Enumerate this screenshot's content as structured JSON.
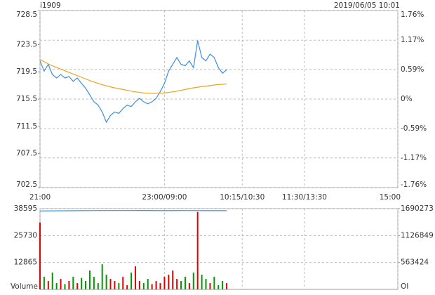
{
  "chart_data": [
    {
      "type": "line",
      "title": "i1909",
      "subtitle": "2019/06/05 10:01",
      "xlim": [
        0,
        345
      ],
      "xticks": [
        {
          "value": 0,
          "label": "21:00"
        },
        {
          "value": 120,
          "label": "23:00/09:00"
        },
        {
          "value": 195,
          "label": "10:15/10:30"
        },
        {
          "value": 255,
          "label": "11:30/13:30"
        },
        {
          "value": 345,
          "label": "15:00"
        }
      ],
      "ylim": [
        702.5,
        728.5
      ],
      "yticks": [
        728.5,
        723.5,
        719.5,
        715.5,
        711.5,
        707.5,
        702.5
      ],
      "y2lim": [
        -1.76,
        1.76
      ],
      "y2ticks": [
        {
          "value": 1.76,
          "label": "1.76%"
        },
        {
          "value": 1.17,
          "label": "1.17%"
        },
        {
          "value": 0.59,
          "label": "0.59%"
        },
        {
          "value": 0,
          "label": "0%"
        },
        {
          "value": -0.59,
          "label": "-0.59%"
        },
        {
          "value": -1.17,
          "label": "-1.17%"
        },
        {
          "value": -1.76,
          "label": "-1.76%"
        }
      ],
      "grid": true,
      "up_color": "#e60000",
      "down_color": "#009900",
      "series": [
        {
          "color": "#3c8ee0",
          "x": [
            0,
            4,
            8,
            12,
            16,
            20,
            24,
            28,
            32,
            36,
            40,
            44,
            48,
            52,
            56,
            60,
            64,
            68,
            72,
            76,
            80,
            84,
            88,
            92,
            96,
            100,
            104,
            108,
            112,
            116,
            120,
            124,
            128,
            132,
            136,
            140,
            144,
            148,
            152,
            156,
            160,
            164,
            168,
            172,
            176,
            180
          ],
          "values": [
            721.1,
            719.6,
            720.6,
            719.1,
            718.6,
            719.1,
            718.6,
            718.8,
            718.1,
            718.6,
            717.8,
            717.1,
            716.1,
            715.1,
            714.6,
            713.6,
            712.1,
            713.1,
            713.6,
            713.4,
            714.1,
            714.6,
            714.4,
            715.1,
            715.6,
            715.1,
            714.8,
            715.1,
            715.6,
            716.6,
            717.8,
            719.6,
            720.6,
            721.6,
            720.6,
            720.4,
            721.1,
            720.1,
            724.1,
            721.6,
            721.1,
            722.1,
            721.6,
            720.1,
            719.3,
            719.8
          ]
        },
        {
          "color": "#f0a020",
          "x": [
            0,
            10,
            20,
            30,
            40,
            50,
            60,
            70,
            80,
            90,
            100,
            110,
            120,
            130,
            140,
            150,
            160,
            170,
            180
          ],
          "values": [
            721.3,
            720.5,
            719.9,
            719.3,
            718.7,
            718.1,
            717.6,
            717.2,
            716.9,
            716.6,
            716.4,
            716.3,
            716.4,
            716.6,
            716.9,
            717.2,
            717.4,
            717.6,
            717.7
          ]
        }
      ]
    },
    {
      "type": "bar",
      "ylabel": "Volume",
      "y2label": "OI",
      "xlim": [
        0,
        345
      ],
      "ylim": [
        0,
        38595
      ],
      "yticks": [
        12865,
        25730,
        38595
      ],
      "y2lim": [
        0,
        1690273
      ],
      "y2ticks": [
        563424,
        1126849,
        1690273
      ],
      "grid": true,
      "series": [
        {
          "x": [
            0,
            4,
            8,
            12,
            16,
            20,
            24,
            28,
            32,
            36,
            40,
            44,
            48,
            52,
            56,
            60,
            64,
            68,
            72,
            76,
            80,
            84,
            88,
            92,
            96,
            100,
            104,
            108,
            112,
            116,
            120,
            124,
            128,
            132,
            136,
            140,
            144,
            148,
            152,
            156,
            160,
            164,
            168,
            172,
            176,
            180
          ],
          "values": [
            32000,
            6000,
            4000,
            8000,
            3000,
            5000,
            2500,
            4000,
            6000,
            3000,
            5500,
            4000,
            9000,
            6000,
            3000,
            12000,
            7000,
            5000,
            4000,
            3000,
            6000,
            2000,
            8000,
            11000,
            4000,
            3000,
            5000,
            2500,
            4000,
            3000,
            6000,
            7000,
            9000,
            5000,
            4000,
            6000,
            3000,
            8000,
            37000,
            7000,
            5000,
            3000,
            6000,
            2000,
            4000,
            3000
          ],
          "colors": [
            "#e60000",
            "#009900",
            "#e60000",
            "#009900",
            "#009900",
            "#e60000",
            "#009900",
            "#e60000",
            "#009900",
            "#e60000",
            "#009900",
            "#009900",
            "#009900",
            "#009900",
            "#009900",
            "#009900",
            "#009900",
            "#e60000",
            "#e60000",
            "#009900",
            "#e60000",
            "#e60000",
            "#009900",
            "#e60000",
            "#e60000",
            "#009900",
            "#009900",
            "#e60000",
            "#e60000",
            "#e60000",
            "#e60000",
            "#e60000",
            "#e60000",
            "#e60000",
            "#009900",
            "#009900",
            "#e60000",
            "#009900",
            "#e60000",
            "#009900",
            "#009900",
            "#e60000",
            "#009900",
            "#009900",
            "#009900",
            "#e60000"
          ]
        },
        {
          "axis": "y2",
          "color": "#3c8ee0",
          "x": [
            0,
            20,
            40,
            60,
            80,
            100,
            120,
            140,
            160,
            180
          ],
          "values": [
            1640000,
            1645000,
            1648000,
            1650000,
            1650000,
            1652000,
            1648000,
            1650000,
            1648000,
            1647000
          ]
        }
      ]
    }
  ]
}
